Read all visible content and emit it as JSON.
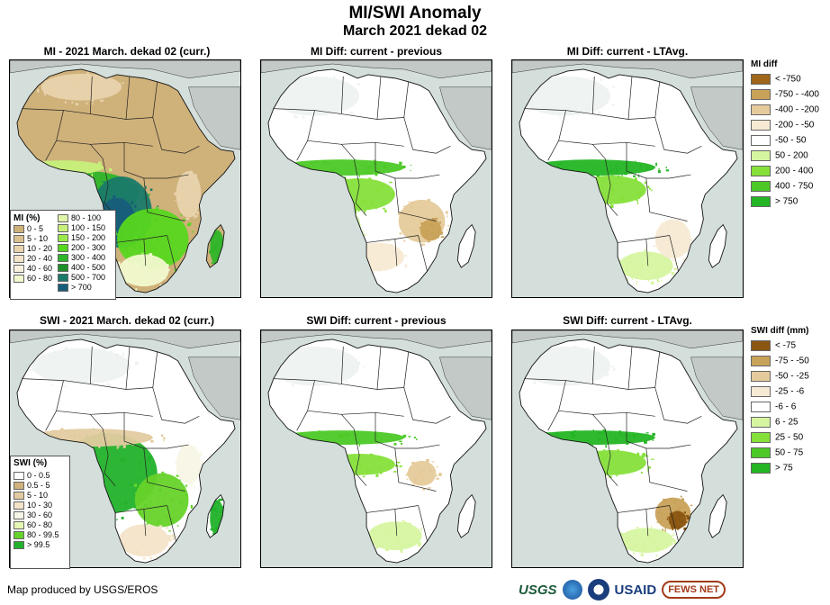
{
  "title": "MI/SWI Anomaly",
  "subtitle": "March 2021 dekad 02",
  "panels": {
    "mi_curr": "MI - 2021 March. dekad 02 (curr.)",
    "mi_diff_prev": "MI Diff: current - previous",
    "mi_diff_lta": "MI Diff: current - LTAvg.",
    "swi_curr": "SWI - 2021 March. dekad 02 (curr.)",
    "swi_diff_prev": "SWI Diff: current - previous",
    "swi_diff_lta": "SWI Diff: current - LTAvg."
  },
  "mi_legend": {
    "title": "MI (%)",
    "col1": [
      {
        "label": "0 - 5",
        "color": "#cfb17a"
      },
      {
        "label": "5 - 10",
        "color": "#dcc190"
      },
      {
        "label": "10 - 20",
        "color": "#e8d3ad"
      },
      {
        "label": "20 - 40",
        "color": "#f3e4c9"
      },
      {
        "label": "40 - 60",
        "color": "#f8f1df"
      },
      {
        "label": "60 - 80",
        "color": "#f1f9cf"
      }
    ],
    "col2": [
      {
        "label": "80 - 100",
        "color": "#dff5a8"
      },
      {
        "label": "100 - 150",
        "color": "#c6f07a"
      },
      {
        "label": "150 - 200",
        "color": "#9be84a"
      },
      {
        "label": "200 - 300",
        "color": "#57d61f"
      },
      {
        "label": "300 - 400",
        "color": "#2eb52a"
      },
      {
        "label": "400 - 500",
        "color": "#1c8f2a"
      },
      {
        "label": "500 - 700",
        "color": "#1a7a6a"
      },
      {
        "label": "> 700",
        "color": "#165d7a"
      }
    ]
  },
  "swi_legend": {
    "title": "SWI (%)",
    "items": [
      {
        "label": "0 - 0.5",
        "color": "#ffffff"
      },
      {
        "label": "0.5 - 5",
        "color": "#cfb17a"
      },
      {
        "label": "5 - 10",
        "color": "#e3cba0"
      },
      {
        "label": "10 - 30",
        "color": "#f3e4c9"
      },
      {
        "label": "30 - 60",
        "color": "#f8f6e6"
      },
      {
        "label": "60 - 80",
        "color": "#e5f7b0"
      },
      {
        "label": "80 - 99.5",
        "color": "#66d32a"
      },
      {
        "label": "> 99.5",
        "color": "#22b22a"
      }
    ]
  },
  "mi_diff_legend": {
    "title": "MI diff",
    "items": [
      {
        "label": "< -750",
        "color": "#a0661a"
      },
      {
        "label": "-750 - -400",
        "color": "#c9a25a"
      },
      {
        "label": "-400 - -200",
        "color": "#e5cb9b"
      },
      {
        "label": "-200 - -50",
        "color": "#f7ead4"
      },
      {
        "label": "-50 - 50",
        "color": "#ffffff"
      },
      {
        "label": "50 - 200",
        "color": "#d6f5a0"
      },
      {
        "label": "200 - 400",
        "color": "#86e03a"
      },
      {
        "label": "400 - 750",
        "color": "#4cc926"
      },
      {
        "label": "> 750",
        "color": "#24b524"
      }
    ]
  },
  "swi_diff_legend": {
    "title": "SWI diff (mm)",
    "items": [
      {
        "label": "< -75",
        "color": "#8a5612"
      },
      {
        "label": "-75 - -50",
        "color": "#c9a25a"
      },
      {
        "label": "-50 - -25",
        "color": "#e5cb9b"
      },
      {
        "label": "-25 - -6",
        "color": "#f7ead4"
      },
      {
        "label": "-6 - 6",
        "color": "#ffffff"
      },
      {
        "label": "6 - 25",
        "color": "#d6f5a0"
      },
      {
        "label": "25 - 50",
        "color": "#86e03a"
      },
      {
        "label": "50 - 75",
        "color": "#4cc926"
      },
      {
        "label": "> 75",
        "color": "#24b524"
      }
    ]
  },
  "credit": "Map produced by USGS/EROS",
  "logos": {
    "usgs": "USGS",
    "usaid": "USAID",
    "fews": "FEWS NET"
  },
  "colors": {
    "sea": "#d4dedb",
    "land_gray": "#c2c9c6"
  }
}
